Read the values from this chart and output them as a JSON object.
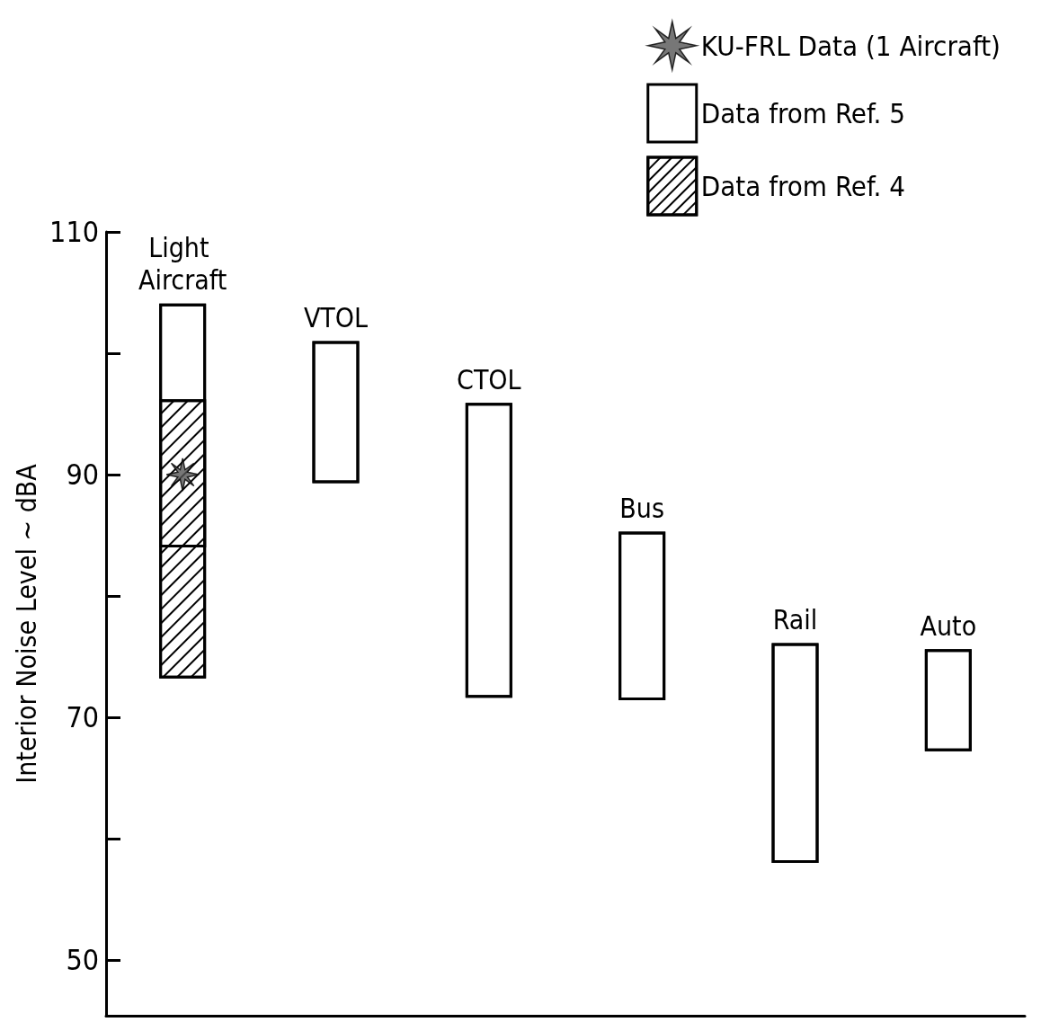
{
  "chart_data": {
    "type": "bar",
    "ylabel": "Interior Noise Level ~ dBA",
    "categories": [
      "Light Aircraft",
      "VTOL",
      "CTOL",
      "Bus",
      "Rail",
      "Auto"
    ],
    "series": [
      {
        "name": "Data from Ref. 4",
        "color": "#ffffff",
        "base": [
          73.2,
          null,
          null,
          null,
          null,
          null
        ],
        "values": [
          23.0,
          null,
          null,
          null,
          null,
          null
        ]
      },
      {
        "name": "Data from Ref. 5",
        "color": "#ffffff",
        "base": [
          84.0,
          89.3,
          71.6,
          71.4,
          58.0,
          67.2
        ],
        "values": [
          20.1,
          11.7,
          24.3,
          13.9,
          18.1,
          8.4
        ]
      },
      {
        "name": "KU-FRL Data (1 Aircraft)",
        "type": "scatter",
        "marker": "star",
        "color": "#555555",
        "x": [
          "Light Aircraft"
        ],
        "values": [
          90
        ]
      }
    ],
    "ylim": [
      45.4,
      110
    ],
    "yticks": [
      50,
      {
        "value": 60,
        "label": null
      },
      70,
      {
        "value": 80,
        "label": null
      },
      90,
      {
        "value": 100,
        "label": null
      },
      110
    ],
    "tick_labels": "y",
    "grid": false,
    "legend": "top right"
  }
}
